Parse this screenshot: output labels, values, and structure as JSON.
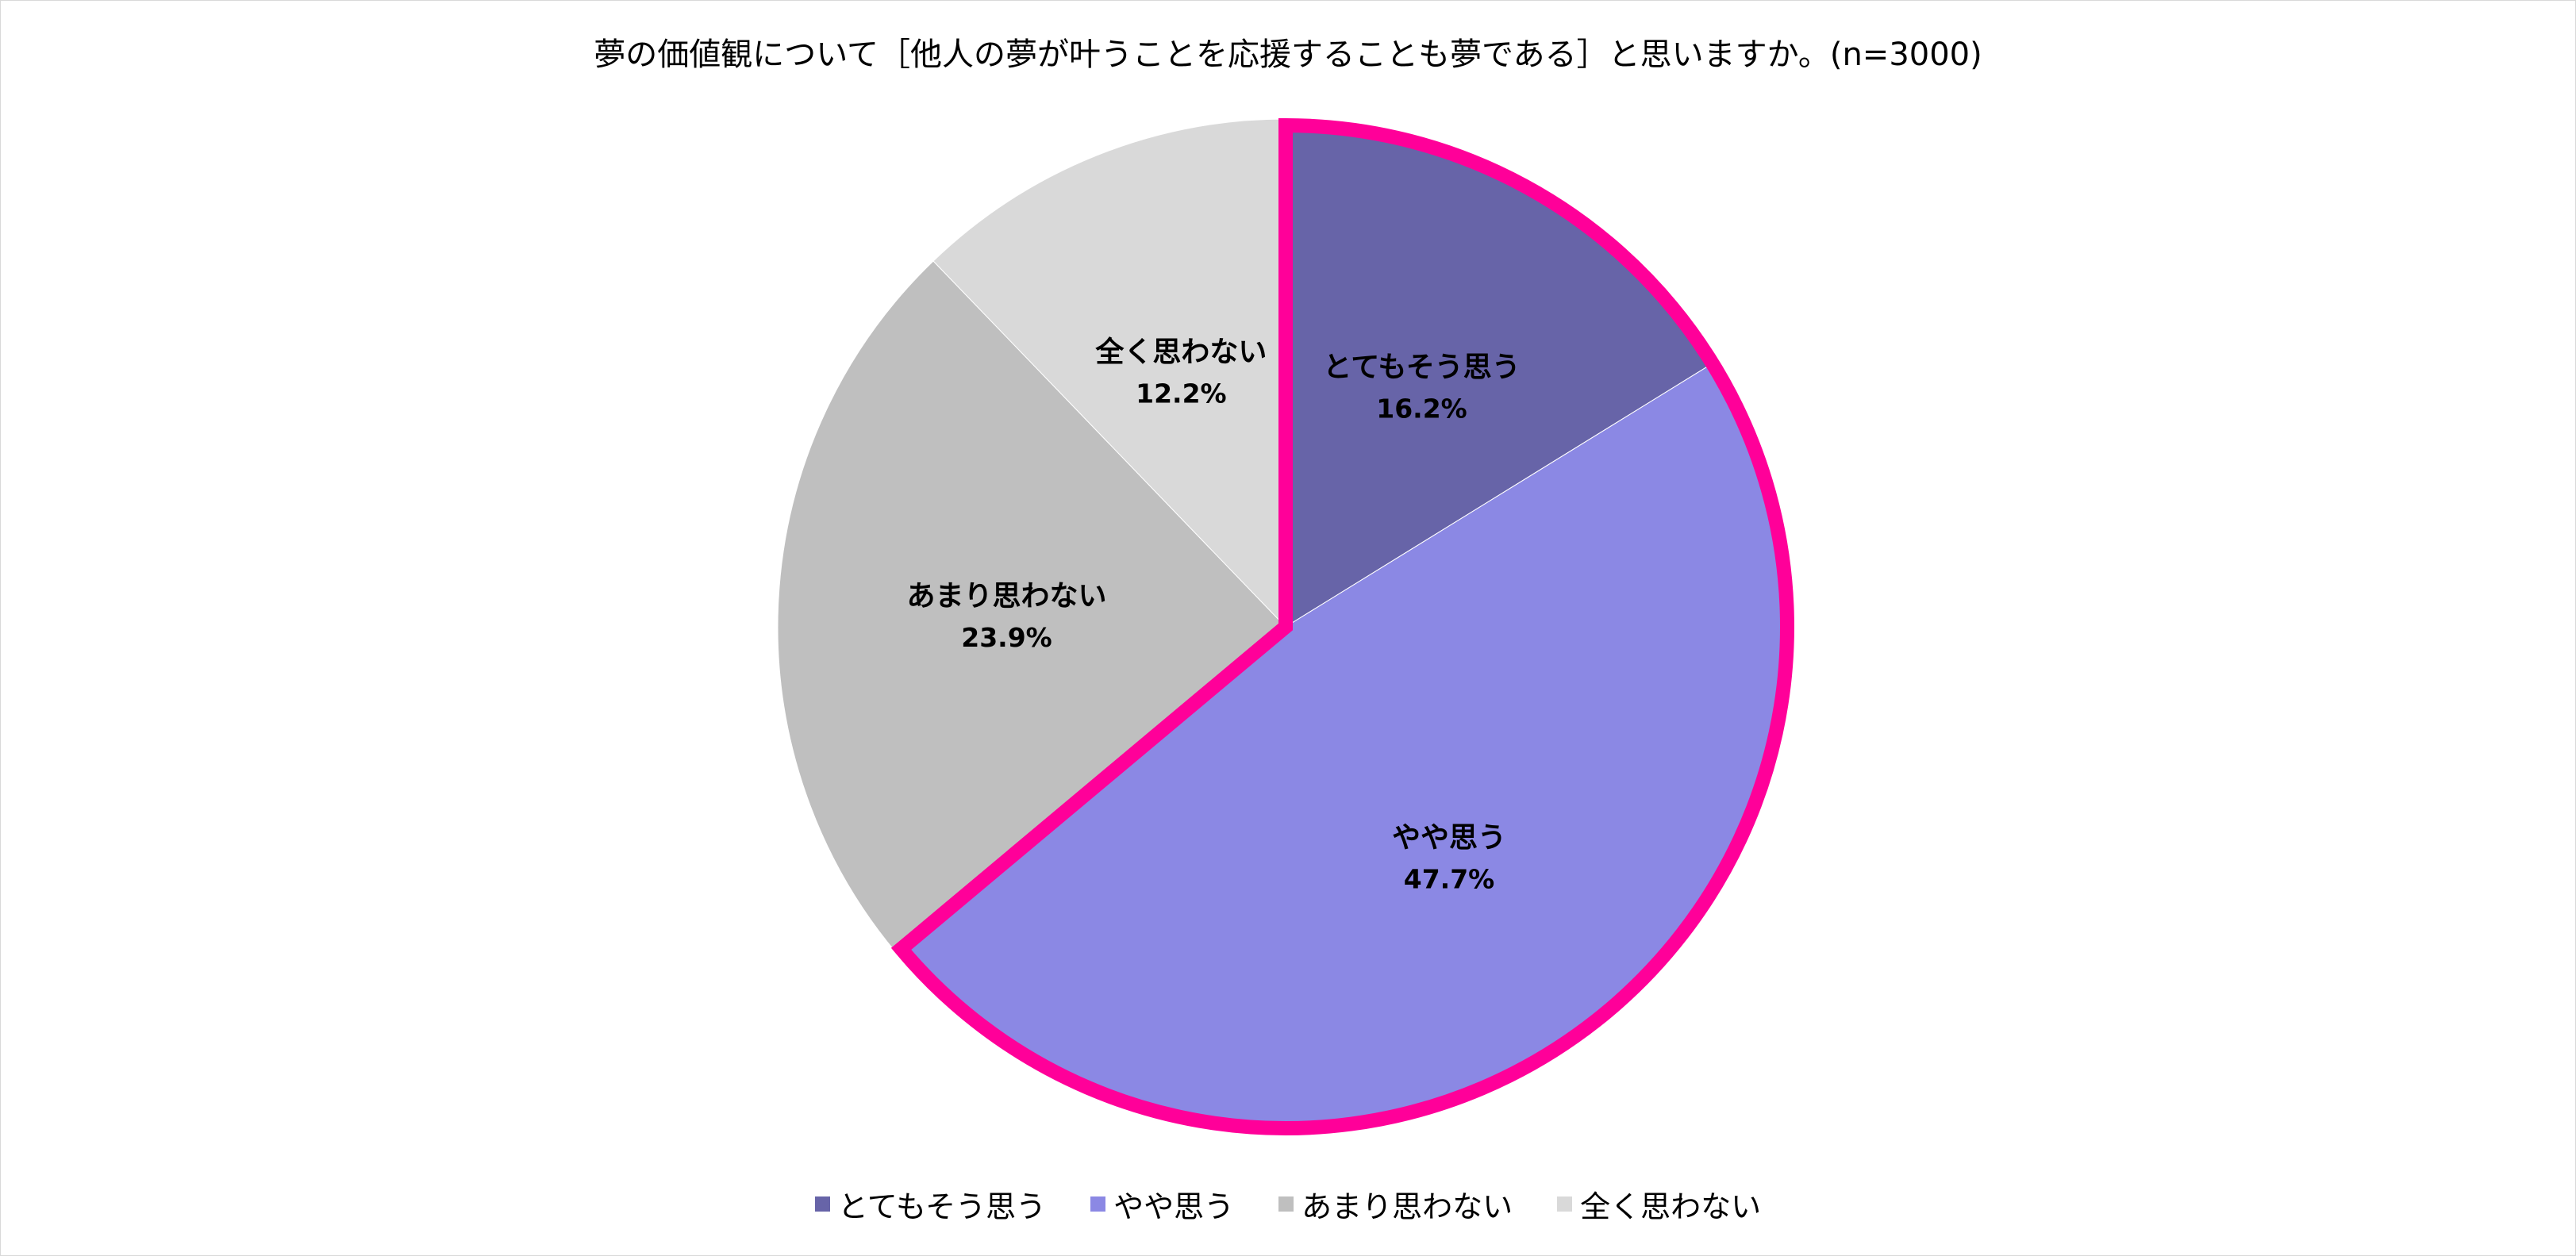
{
  "chart_data": {
    "type": "pie",
    "title": "夢の価値観について［他人の夢が叶うことを応援することも夢である］と思いますか。(n=3000)",
    "slices": [
      {
        "label": "とてもそう思う",
        "value": 16.2,
        "value_label": "16.2%",
        "color": "#6764a8",
        "highlighted": true
      },
      {
        "label": "やや思う",
        "value": 47.7,
        "value_label": "47.7%",
        "color": "#8b88e4",
        "highlighted": true
      },
      {
        "label": "あまり思わない",
        "value": 23.9,
        "value_label": "23.9%",
        "color": "#bfbfbf",
        "highlighted": false
      },
      {
        "label": "全く思わない",
        "value": 12.2,
        "value_label": "12.2%",
        "color": "#d9d9d9",
        "highlighted": false
      }
    ],
    "highlight_color": "#ff0099",
    "legend_position": "bottom",
    "start_angle": "12 o'clock",
    "direction": "clockwise"
  }
}
